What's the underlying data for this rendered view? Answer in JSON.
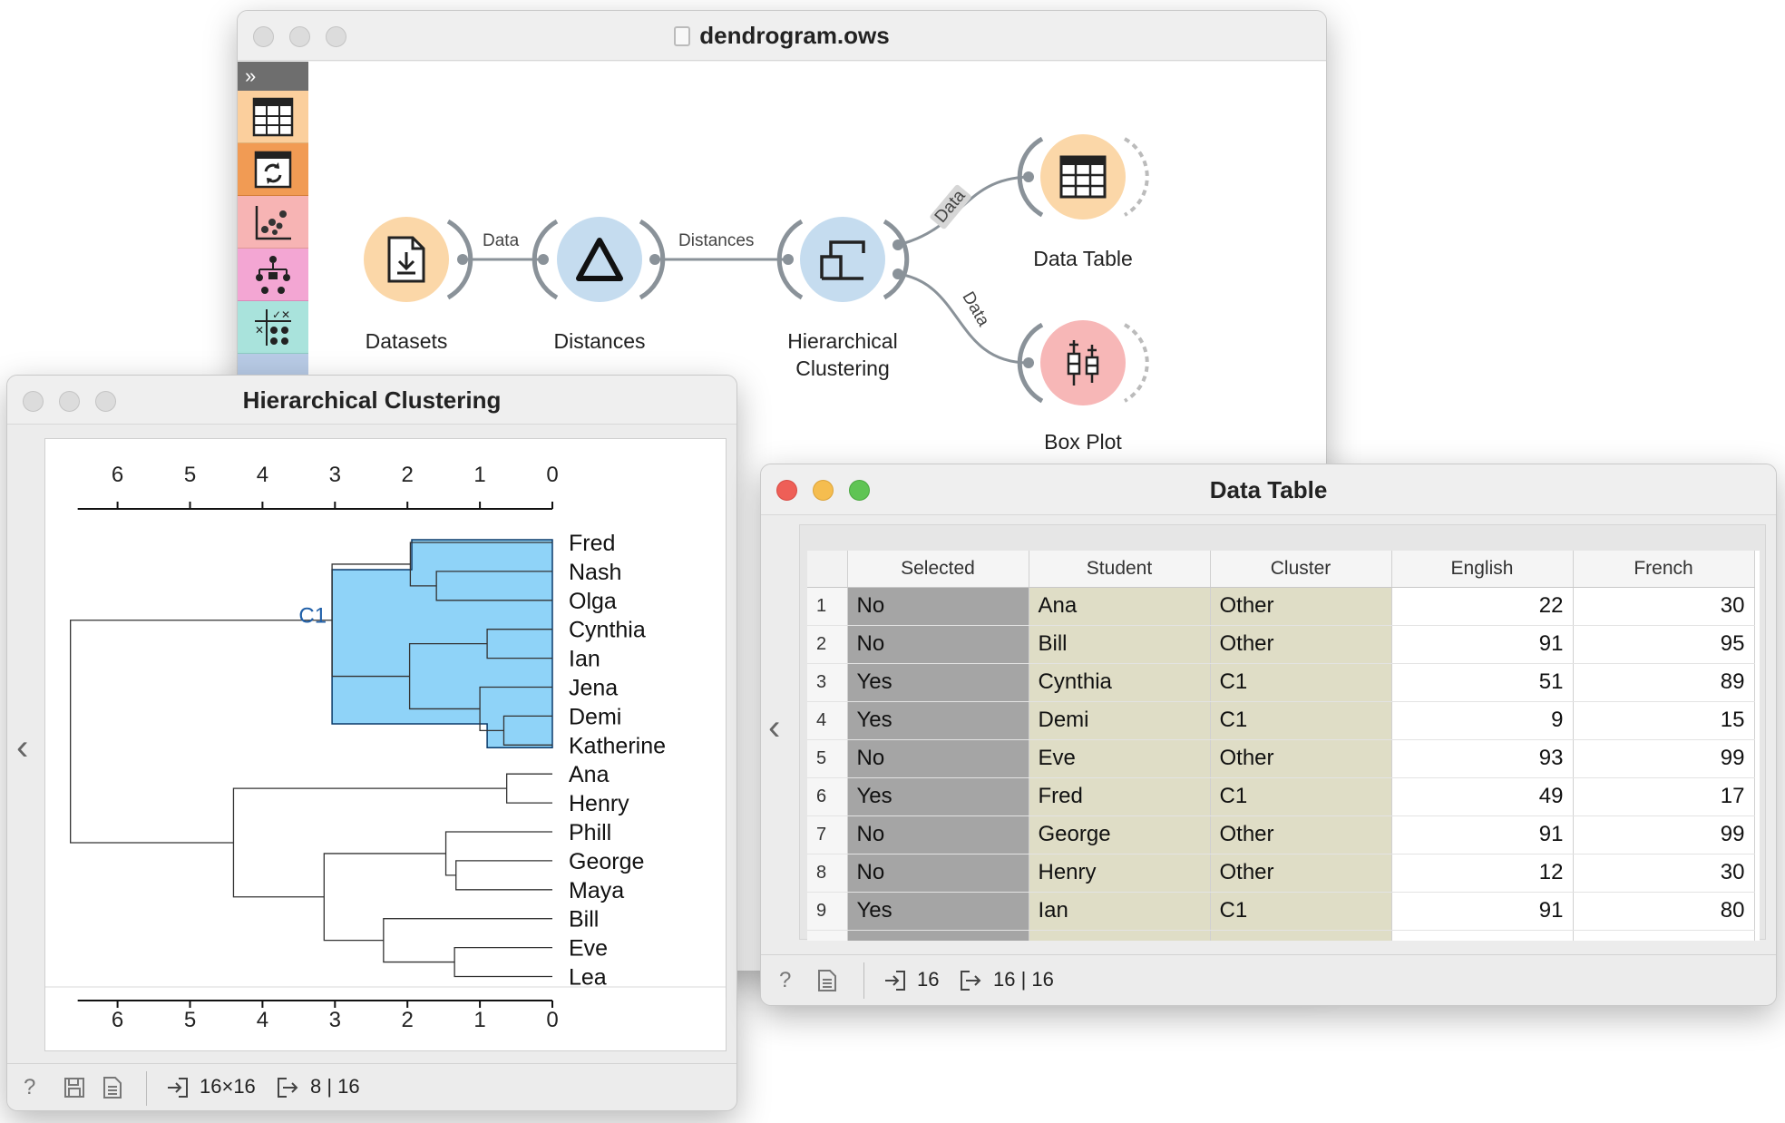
{
  "workflow": {
    "title": "dendrogram.ows",
    "nodes": {
      "datasets": "Datasets",
      "distances": "Distances",
      "hier_line1": "Hierarchical",
      "hier_line2": "Clustering",
      "data_table": "Data Table",
      "box_plot": "Box Plot"
    },
    "links": {
      "datasets_distances": "Data",
      "distances_hier": "Distances",
      "hier_table": "Data",
      "hier_box": "Data"
    }
  },
  "hc": {
    "title": "Hierarchical Clustering",
    "axis_ticks": [
      "6",
      "5",
      "4",
      "3",
      "2",
      "1",
      "0"
    ],
    "cluster_label": "C1",
    "leaves": [
      "Fred",
      "Nash",
      "Olga",
      "Cynthia",
      "Ian",
      "Jena",
      "Demi",
      "Katherine",
      "Ana",
      "Henry",
      "Phill",
      "George",
      "Maya",
      "Bill",
      "Eve",
      "Lea"
    ],
    "status_input": "16×16",
    "status_output": "8 | 16"
  },
  "dt": {
    "title": "Data Table",
    "columns": [
      "Selected",
      "Student",
      "Cluster",
      "English",
      "French"
    ],
    "rows": [
      [
        "1",
        "No",
        "Ana",
        "Other",
        "22",
        "30"
      ],
      [
        "2",
        "No",
        "Bill",
        "Other",
        "91",
        "95"
      ],
      [
        "3",
        "Yes",
        "Cynthia",
        "C1",
        "51",
        "89"
      ],
      [
        "4",
        "Yes",
        "Demi",
        "C1",
        "9",
        "15"
      ],
      [
        "5",
        "No",
        "Eve",
        "Other",
        "93",
        "99"
      ],
      [
        "6",
        "Yes",
        "Fred",
        "C1",
        "49",
        "17"
      ],
      [
        "7",
        "No",
        "George",
        "Other",
        "91",
        "99"
      ],
      [
        "8",
        "No",
        "Henry",
        "Other",
        "12",
        "30"
      ],
      [
        "9",
        "Yes",
        "Ian",
        "C1",
        "91",
        "80"
      ]
    ],
    "status_input": "16",
    "status_output": "16 | 16"
  },
  "colors": {
    "selection": "#8fd3f8",
    "cluster_label": "#1f5fa8",
    "datasets_node": "#fbd7a8",
    "distances_node": "#c5dcef",
    "table_node": "#fbd7a8",
    "boxplot_node": "#f7b7b7",
    "close_red": "#ee5f57",
    "minimize_yellow": "#f5bd4f",
    "zoom_green": "#5fc454"
  }
}
